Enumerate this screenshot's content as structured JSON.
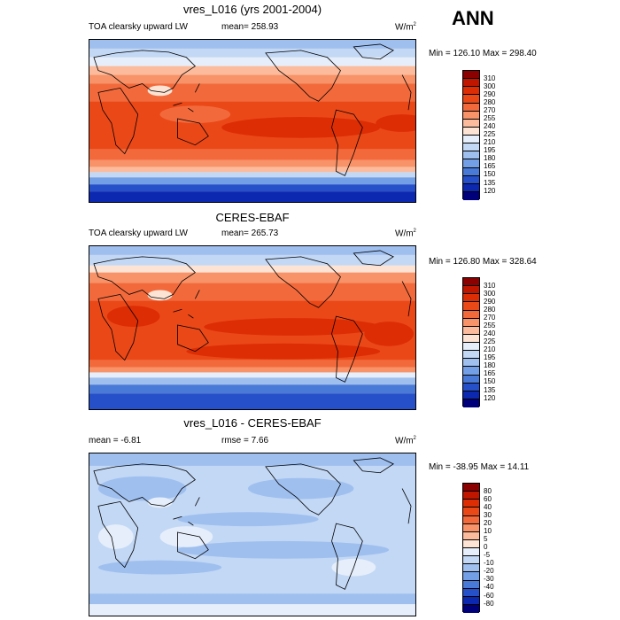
{
  "season": "ANN",
  "panels": [
    {
      "title": "vres_L016 (yrs 2001-2004)",
      "left_label": "TOA clearsky upward LW",
      "center_label": "mean= 258.93",
      "units": "W/m",
      "units_sup": "2",
      "minmax": "Min = 126.10 Max = 298.40",
      "levels": [
        "310",
        "300",
        "290",
        "280",
        "270",
        "255",
        "240",
        "225",
        "210",
        "195",
        "180",
        "165",
        "150",
        "135",
        "120"
      ],
      "colors": [
        "#8b0000",
        "#c01600",
        "#dd2d05",
        "#eb4818",
        "#f26a3c",
        "#f89268",
        "#fbbb9c",
        "#fde3d4",
        "#e5eefa",
        "#c3d8f5",
        "#9fbfef",
        "#739fe6",
        "#4a7ad8",
        "#2650ca",
        "#0d28b0",
        "#00007a"
      ]
    },
    {
      "title": "CERES-EBAF",
      "left_label": "TOA clearsky upward LW",
      "center_label": "mean= 265.73",
      "units": "W/m",
      "units_sup": "2",
      "minmax": "Min = 126.80 Max = 328.64",
      "levels": [
        "310",
        "300",
        "290",
        "280",
        "270",
        "255",
        "240",
        "225",
        "210",
        "195",
        "180",
        "165",
        "150",
        "135",
        "120"
      ],
      "colors": [
        "#8b0000",
        "#c01600",
        "#dd2d05",
        "#eb4818",
        "#f26a3c",
        "#f89268",
        "#fbbb9c",
        "#fde3d4",
        "#e5eefa",
        "#c3d8f5",
        "#9fbfef",
        "#739fe6",
        "#4a7ad8",
        "#2650ca",
        "#0d28b0",
        "#00007a"
      ]
    },
    {
      "title": "vres_L016 - CERES-EBAF",
      "left_label": "mean = -6.81",
      "center_label": "rmse = 7.66",
      "units": "W/m",
      "units_sup": "2",
      "minmax": "Min = -38.95 Max = 14.11",
      "levels": [
        "80",
        "60",
        "40",
        "30",
        "20",
        "10",
        "5",
        "0",
        "-5",
        "-10",
        "-20",
        "-30",
        "-40",
        "-60",
        "-80"
      ],
      "colors": [
        "#8b0000",
        "#c01600",
        "#dd2d05",
        "#eb4818",
        "#f26a3c",
        "#f89268",
        "#fbbb9c",
        "#fde3d4",
        "#e5eefa",
        "#c3d8f5",
        "#9fbfef",
        "#739fe6",
        "#4a7ad8",
        "#2650ca",
        "#0d28b0",
        "#00007a"
      ]
    }
  ]
}
